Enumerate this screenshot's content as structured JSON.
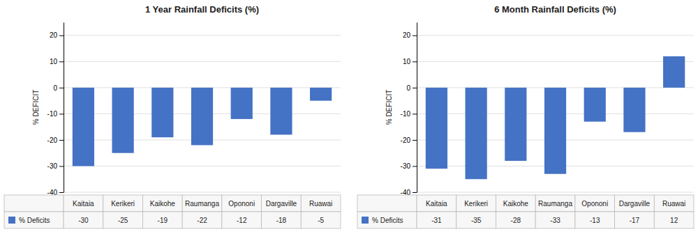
{
  "chart_data": [
    {
      "type": "bar",
      "title": "1 Year Rainfall Deficits (%)",
      "categories": [
        "Kaitaia",
        "Kerikeri",
        "Kaikohe",
        "Raumanga",
        "Opononi",
        "Dargaville",
        "Ruawai"
      ],
      "series": [
        {
          "name": "% Deficits",
          "color": "#4472C4",
          "values": [
            -30,
            -25,
            -19,
            -22,
            -12,
            -18,
            -5
          ]
        }
      ],
      "ylabel": "% DEFICIT",
      "ylim": [
        -40,
        25
      ],
      "yticks": [
        -40,
        -30,
        -20,
        -10,
        0,
        10,
        20
      ],
      "grid": true,
      "legend": "bottom",
      "data_labels": true,
      "tick_labels": "y"
    },
    {
      "type": "bar",
      "title": "6 Month Rainfall Deficits (%)",
      "categories": [
        "Kaitaia",
        "Kerikeri",
        "Kaikohe",
        "Raumanga",
        "Opononi",
        "Dargaville",
        "Ruawai"
      ],
      "series": [
        {
          "name": "% Deficits",
          "color": "#4472C4",
          "values": [
            -31,
            -35,
            -28,
            -33,
            -13,
            -17,
            12
          ]
        }
      ],
      "ylabel": "% DEFICIT",
      "ylim": [
        -40,
        25
      ],
      "yticks": [
        -40,
        -30,
        -20,
        -10,
        0,
        10,
        20
      ],
      "grid": true,
      "legend": "bottom",
      "data_labels": true,
      "tick_labels": "y"
    }
  ]
}
